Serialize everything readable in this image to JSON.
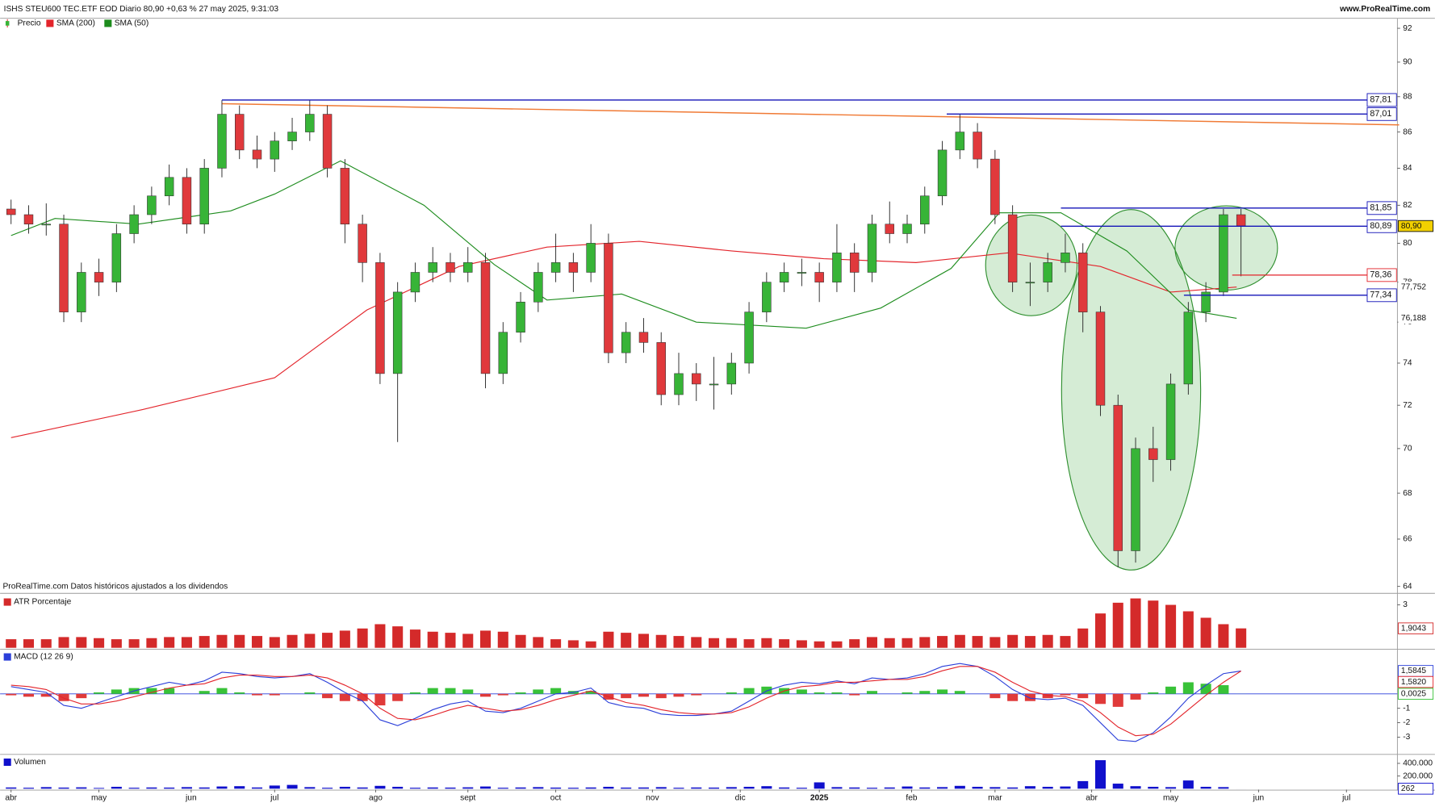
{
  "chart_data": [
    {
      "type": "candlestick",
      "title": "ISHS STEU600 TEC.ETF EOD Diario 80,90 +0,63 % 27 may 2025, 9:31:03",
      "site": "www.ProRealTime.com",
      "note": "ProRealTime.com Datos históricos ajustados a los dividendos",
      "name": "Precio",
      "up_color": "#37b437",
      "down_color": "#e0393c",
      "x": [
        0,
        4,
        8,
        12,
        16,
        20,
        24,
        28,
        32,
        36,
        40,
        44,
        48,
        52,
        56,
        60,
        64,
        68,
        72,
        76,
        80,
        84,
        88,
        92,
        96,
        100,
        104,
        108,
        112,
        116,
        120,
        124,
        128,
        132,
        136,
        140,
        144,
        148,
        152,
        156,
        160,
        164,
        168,
        172,
        176,
        180,
        184,
        188,
        192,
        196,
        200,
        204,
        208,
        212,
        216,
        220,
        224,
        228,
        232,
        236,
        240,
        244,
        248,
        252,
        256,
        260,
        264,
        268,
        272,
        276,
        280
      ],
      "open": [
        81.8,
        81.5,
        81.0,
        81.0,
        76.5,
        78.5,
        78.0,
        80.5,
        81.5,
        82.5,
        83.5,
        81.0,
        84.0,
        87.0,
        85.0,
        84.5,
        85.5,
        86.0,
        87.0,
        84.0,
        81.0,
        79.0,
        73.5,
        77.5,
        78.5,
        79.0,
        78.5,
        79.0,
        73.5,
        75.5,
        77.0,
        78.5,
        79.0,
        78.5,
        80.0,
        74.5,
        75.5,
        75.0,
        72.5,
        73.5,
        73.0,
        73.0,
        74.0,
        76.5,
        78.0,
        78.5,
        78.5,
        78.0,
        79.5,
        78.5,
        81.0,
        80.5,
        81.0,
        82.5,
        85.0,
        86.0,
        84.5,
        81.5,
        78.0,
        78.0,
        79.0,
        79.5,
        76.5,
        72.0,
        65.5,
        70.0,
        69.5,
        73.0,
        76.5,
        77.5,
        81.5
      ],
      "high": [
        82.3,
        82.0,
        82.1,
        81.5,
        79.0,
        79.2,
        81.0,
        82.0,
        83.0,
        84.2,
        84.0,
        84.5,
        87.8,
        87.5,
        85.8,
        86.0,
        86.8,
        87.8,
        87.5,
        84.5,
        81.5,
        79.5,
        78.0,
        79.0,
        79.8,
        79.5,
        79.8,
        79.5,
        76.0,
        77.5,
        79.0,
        80.5,
        79.5,
        81.0,
        80.5,
        76.0,
        76.2,
        75.5,
        74.5,
        74.0,
        74.3,
        74.5,
        77.0,
        78.5,
        79.0,
        79.2,
        79.0,
        81.0,
        80.0,
        81.5,
        82.2,
        81.5,
        83.0,
        85.5,
        87.0,
        86.5,
        85.0,
        82.0,
        79.0,
        79.5,
        80.5,
        80.0,
        76.8,
        72.5,
        70.5,
        71.0,
        73.5,
        77.0,
        78.0,
        81.8,
        81.8
      ],
      "low": [
        81.0,
        80.5,
        80.4,
        76.0,
        76.0,
        77.3,
        77.5,
        80.0,
        81.0,
        82.0,
        80.5,
        80.5,
        83.5,
        84.5,
        84.0,
        83.8,
        85.0,
        85.5,
        83.5,
        80.0,
        78.0,
        73.0,
        70.3,
        77.0,
        78.0,
        78.0,
        78.0,
        72.8,
        73.0,
        75.0,
        76.5,
        78.0,
        77.5,
        78.0,
        74.0,
        74.0,
        74.5,
        72.0,
        72.0,
        72.2,
        71.8,
        72.5,
        73.5,
        76.0,
        77.5,
        77.8,
        77.0,
        77.5,
        77.5,
        78.0,
        80.0,
        80.0,
        80.5,
        82.0,
        84.5,
        84.0,
        81.0,
        77.5,
        76.8,
        77.5,
        78.5,
        75.5,
        71.5,
        64.8,
        65.0,
        68.5,
        69.0,
        72.5,
        76.0,
        77.3,
        78.3
      ],
      "close": [
        81.5,
        81.0,
        81.0,
        76.5,
        78.5,
        78.0,
        80.5,
        81.5,
        82.5,
        83.5,
        81.0,
        84.0,
        87.0,
        85.0,
        84.5,
        85.5,
        86.0,
        87.0,
        84.0,
        81.0,
        79.0,
        73.5,
        77.5,
        78.5,
        79.0,
        78.5,
        79.0,
        73.5,
        75.5,
        77.0,
        78.5,
        79.0,
        78.5,
        80.0,
        74.5,
        75.5,
        75.0,
        72.5,
        73.5,
        73.0,
        73.0,
        74.0,
        76.5,
        78.0,
        78.5,
        78.5,
        78.0,
        79.5,
        78.5,
        81.0,
        80.5,
        81.0,
        82.5,
        85.0,
        86.0,
        84.5,
        81.5,
        78.0,
        78.0,
        79.0,
        79.5,
        76.5,
        72.0,
        65.5,
        70.0,
        69.5,
        73.0,
        76.5,
        77.5,
        81.5,
        80.9
      ],
      "last_price_label": "80,90",
      "last_price_color": "#f2d000",
      "series": [
        {
          "name": "SMA (200)",
          "color": "#e3242b",
          "x": [
            0,
            30,
            60,
            81,
            102,
            122,
            143,
            164,
            185,
            206,
            227,
            248,
            264,
            279
          ],
          "values": [
            70.5,
            71.8,
            73.3,
            76.6,
            78.8,
            79.8,
            80.1,
            79.6,
            79.2,
            79.0,
            79.5,
            78.8,
            77.5,
            77.752
          ],
          "last_label": "77,752"
        },
        {
          "name": "SMA (50)",
          "color": "#1d8c1d",
          "x": [
            0,
            10,
            29,
            50,
            60,
            75,
            94,
            110,
            122,
            139,
            156,
            181,
            198,
            214,
            225,
            239,
            254,
            268,
            279
          ],
          "values": [
            80.4,
            81.3,
            81.0,
            81.7,
            82.6,
            84.4,
            82.0,
            78.9,
            77.1,
            77.4,
            76.0,
            75.7,
            76.7,
            78.7,
            81.6,
            81.6,
            79.6,
            76.6,
            76.188
          ],
          "last_label": "76,188"
        }
      ],
      "levels": [
        {
          "value": 87.81,
          "label": "87,81",
          "color": "#1414b8",
          "x_start": 48
        },
        {
          "value": 87.01,
          "label": "87,01",
          "color": "#1414b8",
          "x_start": 213
        },
        {
          "value": 81.85,
          "label": "81,85",
          "color": "#1414b8",
          "x_start": 239
        },
        {
          "value": 80.89,
          "label": "80,89",
          "color": "#1414b8",
          "x_start": 239
        },
        {
          "value": 78.36,
          "label": "78,36",
          "color": "#e3242b",
          "x_start": 278
        },
        {
          "value": 77.34,
          "label": "77,34",
          "color": "#1414b8",
          "x_start": 267
        }
      ],
      "trendline": {
        "color": "#f07a35",
        "x": [
          48,
          316
        ],
        "y": [
          87.6,
          86.4
        ]
      },
      "xlim": [
        -2.5,
        315.6
      ],
      "ylim": [
        63.73,
        92.6
      ],
      "log_scale": true,
      "yticks": [
        64,
        66,
        68,
        70,
        72,
        74,
        76,
        78,
        80,
        82,
        84,
        86,
        88,
        90,
        92
      ]
    },
    {
      "type": "bar",
      "title": "ATR Porcentaje",
      "color": "#d42a2a",
      "x": [
        0,
        4,
        8,
        12,
        16,
        20,
        24,
        28,
        32,
        36,
        40,
        44,
        48,
        52,
        56,
        60,
        64,
        68,
        72,
        76,
        80,
        84,
        88,
        92,
        96,
        100,
        104,
        108,
        112,
        116,
        120,
        124,
        128,
        132,
        136,
        140,
        144,
        148,
        152,
        156,
        160,
        164,
        168,
        172,
        176,
        180,
        184,
        188,
        192,
        196,
        200,
        204,
        208,
        212,
        216,
        220,
        224,
        228,
        232,
        236,
        240,
        244,
        248,
        252,
        256,
        260,
        264,
        268,
        272,
        276,
        280
      ],
      "values": [
        1.4,
        1.4,
        1.4,
        1.5,
        1.5,
        1.45,
        1.4,
        1.4,
        1.45,
        1.5,
        1.5,
        1.55,
        1.6,
        1.6,
        1.55,
        1.5,
        1.6,
        1.65,
        1.7,
        1.8,
        1.9,
        2.1,
        2.0,
        1.85,
        1.75,
        1.7,
        1.65,
        1.8,
        1.75,
        1.6,
        1.5,
        1.4,
        1.35,
        1.3,
        1.75,
        1.7,
        1.65,
        1.6,
        1.55,
        1.5,
        1.45,
        1.45,
        1.4,
        1.45,
        1.4,
        1.35,
        1.3,
        1.3,
        1.4,
        1.5,
        1.45,
        1.45,
        1.5,
        1.55,
        1.6,
        1.55,
        1.5,
        1.6,
        1.55,
        1.6,
        1.55,
        1.9,
        2.6,
        3.1,
        3.3,
        3.2,
        3.0,
        2.7,
        2.4,
        2.1,
        1.9043
      ],
      "last_label": "1,9043",
      "xlim": [
        -2.5,
        315.6
      ],
      "ylim": [
        1.0,
        3.43
      ],
      "yticks": [
        3
      ]
    },
    {
      "type": "line",
      "title": "MACD (12 26 9)",
      "x": [
        0,
        4,
        8,
        12,
        16,
        20,
        24,
        28,
        32,
        36,
        40,
        44,
        48,
        52,
        56,
        60,
        64,
        68,
        72,
        76,
        80,
        84,
        88,
        92,
        96,
        100,
        104,
        108,
        112,
        116,
        120,
        124,
        128,
        132,
        136,
        140,
        144,
        148,
        152,
        156,
        160,
        164,
        168,
        172,
        176,
        180,
        184,
        188,
        192,
        196,
        200,
        204,
        208,
        212,
        216,
        220,
        224,
        228,
        232,
        236,
        240,
        244,
        248,
        252,
        256,
        260,
        264,
        268,
        272,
        276,
        280
      ],
      "series": [
        {
          "style": "histogram",
          "color": "#38c238",
          "negative_color": "#e03a3a",
          "values": [
            -0.1,
            -0.2,
            -0.2,
            -0.5,
            -0.3,
            0.1,
            0.3,
            0.4,
            0.4,
            0.4,
            0.0,
            0.2,
            0.4,
            0.1,
            -0.1,
            -0.1,
            0.0,
            0.1,
            -0.3,
            -0.5,
            -0.5,
            -0.8,
            -0.5,
            0.1,
            0.4,
            0.4,
            0.3,
            -0.2,
            -0.1,
            0.1,
            0.3,
            0.4,
            0.2,
            0.2,
            -0.4,
            -0.3,
            -0.2,
            -0.3,
            -0.2,
            -0.1,
            0.0,
            0.1,
            0.4,
            0.5,
            0.4,
            0.3,
            0.1,
            0.1,
            -0.1,
            0.2,
            0.0,
            0.1,
            0.2,
            0.3,
            0.2,
            0.0,
            -0.3,
            -0.5,
            -0.5,
            -0.3,
            -0.1,
            -0.3,
            -0.7,
            -0.9,
            -0.4,
            0.1,
            0.5,
            0.8,
            0.7,
            0.6,
            0.0025
          ],
          "last_label": "0,0025"
        },
        {
          "color": "#2b3fd9",
          "values": [
            0.5,
            0.3,
            0.1,
            -0.8,
            -1.0,
            -0.6,
            -0.2,
            0.2,
            0.5,
            0.8,
            0.6,
            0.9,
            1.5,
            1.4,
            1.2,
            1.1,
            1.2,
            1.4,
            0.8,
            0.1,
            -0.5,
            -1.8,
            -2.2,
            -1.7,
            -1.1,
            -0.7,
            -0.5,
            -1.2,
            -1.3,
            -1.0,
            -0.5,
            0.0,
            0.1,
            0.4,
            -0.6,
            -0.9,
            -1.0,
            -1.4,
            -1.5,
            -1.5,
            -1.4,
            -1.2,
            -0.5,
            0.2,
            0.6,
            0.8,
            0.7,
            0.9,
            0.7,
            1.1,
            1.0,
            1.1,
            1.4,
            1.9,
            2.1,
            1.9,
            1.2,
            0.3,
            -0.3,
            -0.4,
            -0.3,
            -0.8,
            -2.0,
            -3.2,
            -3.3,
            -2.7,
            -1.6,
            -0.3,
            0.6,
            1.4,
            1.5845
          ],
          "last_label": "1,5845"
        },
        {
          "color": "#e3242b",
          "values": [
            0.6,
            0.5,
            0.3,
            -0.3,
            -0.7,
            -0.7,
            -0.5,
            -0.2,
            0.1,
            0.4,
            0.6,
            0.7,
            1.1,
            1.3,
            1.3,
            1.2,
            1.2,
            1.3,
            1.1,
            0.6,
            0.0,
            -1.0,
            -1.7,
            -1.8,
            -1.5,
            -1.1,
            -0.8,
            -1.0,
            -1.2,
            -1.1,
            -0.8,
            -0.4,
            -0.1,
            0.2,
            -0.2,
            -0.6,
            -0.8,
            -1.1,
            -1.3,
            -1.4,
            -1.4,
            -1.3,
            -0.9,
            -0.3,
            0.2,
            0.5,
            0.6,
            0.8,
            0.8,
            0.9,
            1.0,
            1.0,
            1.2,
            1.6,
            1.9,
            1.9,
            1.5,
            0.8,
            0.2,
            -0.1,
            -0.2,
            -0.5,
            -1.3,
            -2.3,
            -2.9,
            -2.8,
            -2.1,
            -1.1,
            -0.1,
            0.8,
            1.582
          ],
          "last_label": "1,5820"
        }
      ],
      "zero_line": true,
      "zero_color": "#2b3fd9",
      "xlim": [
        -2.5,
        315.6
      ],
      "ylim": [
        -4.1,
        3.0
      ],
      "yticks": [
        -3,
        -2,
        -1
      ]
    },
    {
      "type": "bar",
      "title": "Volumen",
      "color": "#1010cc",
      "x": [
        0,
        4,
        8,
        12,
        16,
        20,
        24,
        28,
        32,
        36,
        40,
        44,
        48,
        52,
        56,
        60,
        64,
        68,
        72,
        76,
        80,
        84,
        88,
        92,
        96,
        100,
        104,
        108,
        112,
        116,
        120,
        124,
        128,
        132,
        136,
        140,
        144,
        148,
        152,
        156,
        160,
        164,
        168,
        172,
        176,
        180,
        184,
        188,
        192,
        196,
        200,
        204,
        208,
        212,
        216,
        220,
        224,
        228,
        232,
        236,
        240,
        244,
        248,
        252,
        256,
        260,
        264,
        268,
        272,
        276,
        280
      ],
      "values": [
        20000,
        15000,
        25000,
        18000,
        22000,
        12000,
        30000,
        15000,
        20000,
        18000,
        25000,
        20000,
        35000,
        40000,
        20000,
        50000,
        60000,
        25000,
        15000,
        30000,
        20000,
        45000,
        30000,
        15000,
        20000,
        18000,
        22000,
        35000,
        15000,
        20000,
        25000,
        18000,
        15000,
        20000,
        30000,
        18000,
        20000,
        25000,
        15000,
        20000,
        18000,
        25000,
        30000,
        40000,
        20000,
        15000,
        100000,
        25000,
        20000,
        15000,
        20000,
        35000,
        20000,
        25000,
        45000,
        30000,
        25000,
        20000,
        40000,
        30000,
        35000,
        120000,
        450000,
        80000,
        40000,
        30000,
        25000,
        130000,
        30000,
        25000,
        262
      ],
      "last_label": "262",
      "xlim": [
        -2.5,
        315.6
      ],
      "ylim": [
        0,
        520000
      ],
      "yticks": [
        {
          "value": 400000,
          "label": "400.000"
        },
        {
          "value": 200000,
          "label": "200.000"
        }
      ],
      "xticks": [
        {
          "value": 0,
          "label": "abr"
        },
        {
          "value": 20,
          "label": "may"
        },
        {
          "value": 41,
          "label": "jun"
        },
        {
          "value": 60,
          "label": "jul"
        },
        {
          "value": 83,
          "label": "ago"
        },
        {
          "value": 104,
          "label": "sept"
        },
        {
          "value": 124,
          "label": "oct"
        },
        {
          "value": 146,
          "label": "nov"
        },
        {
          "value": 166,
          "label": "dic"
        },
        {
          "value": 184,
          "label": "2025",
          "bold": true
        },
        {
          "value": 205,
          "label": "feb"
        },
        {
          "value": 224,
          "label": "mar"
        },
        {
          "value": 246,
          "label": "abr"
        },
        {
          "value": 264,
          "label": "may"
        },
        {
          "value": 284,
          "label": "jun"
        },
        {
          "value": 304,
          "label": "jul"
        }
      ]
    }
  ]
}
